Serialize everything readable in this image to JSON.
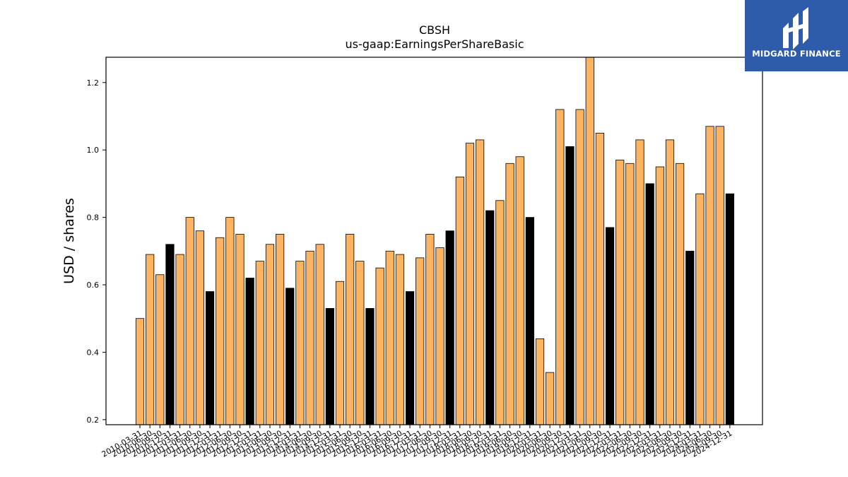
{
  "chart_data": {
    "type": "bar",
    "title": "CBSH",
    "subtitle": "us-gaap:EarningsPerShareBasic",
    "xlabel": "",
    "ylabel": "USD / shares",
    "ylim": [
      0.185,
      1.275
    ],
    "yticks": [
      0.2,
      0.4,
      0.6,
      0.8,
      1.0,
      1.2
    ],
    "grid": false,
    "colors": {
      "quarter": "#fdb462",
      "annual": "#000000",
      "edge": "#000000"
    },
    "bars": [
      {
        "x": "2010-03-31",
        "y": 0.5,
        "kind": "quarter"
      },
      {
        "x": "2010-06-30",
        "y": 0.69,
        "kind": "quarter"
      },
      {
        "x": "2010-09-30",
        "y": 0.63,
        "kind": "quarter"
      },
      {
        "x": "2010-12-31",
        "y": 0.72,
        "kind": "annual"
      },
      {
        "x": "2011-03-31",
        "y": 0.69,
        "kind": "quarter"
      },
      {
        "x": "2011-06-30",
        "y": 0.8,
        "kind": "quarter"
      },
      {
        "x": "2011-09-30",
        "y": 0.76,
        "kind": "quarter"
      },
      {
        "x": "2011-12-31",
        "y": 0.58,
        "kind": "annual"
      },
      {
        "x": "2012-03-31",
        "y": 0.74,
        "kind": "quarter"
      },
      {
        "x": "2012-06-30",
        "y": 0.8,
        "kind": "quarter"
      },
      {
        "x": "2012-09-30",
        "y": 0.75,
        "kind": "quarter"
      },
      {
        "x": "2012-12-31",
        "y": 0.62,
        "kind": "annual"
      },
      {
        "x": "2013-03-31",
        "y": 0.67,
        "kind": "quarter"
      },
      {
        "x": "2013-06-30",
        "y": 0.72,
        "kind": "quarter"
      },
      {
        "x": "2013-09-30",
        "y": 0.75,
        "kind": "quarter"
      },
      {
        "x": "2013-12-31",
        "y": 0.59,
        "kind": "annual"
      },
      {
        "x": "2014-03-31",
        "y": 0.67,
        "kind": "quarter"
      },
      {
        "x": "2014-06-30",
        "y": 0.7,
        "kind": "quarter"
      },
      {
        "x": "2014-09-30",
        "y": 0.72,
        "kind": "quarter"
      },
      {
        "x": "2014-12-31",
        "y": 0.53,
        "kind": "annual"
      },
      {
        "x": "2015-03-31",
        "y": 0.61,
        "kind": "quarter"
      },
      {
        "x": "2015-06-30",
        "y": 0.75,
        "kind": "quarter"
      },
      {
        "x": "2015-09-30",
        "y": 0.67,
        "kind": "quarter"
      },
      {
        "x": "2015-12-31",
        "y": 0.53,
        "kind": "annual"
      },
      {
        "x": "2016-03-31",
        "y": 0.65,
        "kind": "quarter"
      },
      {
        "x": "2016-06-30",
        "y": 0.7,
        "kind": "quarter"
      },
      {
        "x": "2016-09-30",
        "y": 0.69,
        "kind": "quarter"
      },
      {
        "x": "2016-12-31",
        "y": 0.58,
        "kind": "annual"
      },
      {
        "x": "2017-03-31",
        "y": 0.68,
        "kind": "quarter"
      },
      {
        "x": "2017-06-30",
        "y": 0.75,
        "kind": "quarter"
      },
      {
        "x": "2017-09-30",
        "y": 0.71,
        "kind": "quarter"
      },
      {
        "x": "2017-12-31",
        "y": 0.76,
        "kind": "annual"
      },
      {
        "x": "2018-03-31",
        "y": 0.92,
        "kind": "quarter"
      },
      {
        "x": "2018-06-30",
        "y": 1.02,
        "kind": "quarter"
      },
      {
        "x": "2018-09-30",
        "y": 1.03,
        "kind": "quarter"
      },
      {
        "x": "2018-12-31",
        "y": 0.82,
        "kind": "annual"
      },
      {
        "x": "2019-03-31",
        "y": 0.85,
        "kind": "quarter"
      },
      {
        "x": "2019-06-30",
        "y": 0.96,
        "kind": "quarter"
      },
      {
        "x": "2019-09-30",
        "y": 0.98,
        "kind": "quarter"
      },
      {
        "x": "2019-12-31",
        "y": 0.8,
        "kind": "annual"
      },
      {
        "x": "2020-03-31",
        "y": 0.44,
        "kind": "quarter"
      },
      {
        "x": "2020-06-30",
        "y": 0.34,
        "kind": "quarter"
      },
      {
        "x": "2020-09-30",
        "y": 1.12,
        "kind": "quarter"
      },
      {
        "x": "2020-12-31",
        "y": 1.01,
        "kind": "annual"
      },
      {
        "x": "2021-03-31",
        "y": 1.12,
        "kind": "quarter"
      },
      {
        "x": "2021-06-30",
        "y": 1.28,
        "kind": "quarter"
      },
      {
        "x": "2021-09-30",
        "y": 1.05,
        "kind": "quarter"
      },
      {
        "x": "2021-12-31",
        "y": 0.77,
        "kind": "annual"
      },
      {
        "x": "2022-03-31",
        "y": 0.97,
        "kind": "quarter"
      },
      {
        "x": "2022-06-30",
        "y": 0.96,
        "kind": "quarter"
      },
      {
        "x": "2022-09-30",
        "y": 1.03,
        "kind": "quarter"
      },
      {
        "x": "2022-12-31",
        "y": 0.9,
        "kind": "annual"
      },
      {
        "x": "2023-03-31",
        "y": 0.95,
        "kind": "quarter"
      },
      {
        "x": "2023-06-30",
        "y": 1.03,
        "kind": "quarter"
      },
      {
        "x": "2023-09-30",
        "y": 0.96,
        "kind": "quarter"
      },
      {
        "x": "2023-12-31",
        "y": 0.7,
        "kind": "annual"
      },
      {
        "x": "2024-03-31",
        "y": 0.87,
        "kind": "quarter"
      },
      {
        "x": "2024-06-30",
        "y": 1.07,
        "kind": "quarter"
      },
      {
        "x": "2024-09-30",
        "y": 1.07,
        "kind": "quarter"
      },
      {
        "x": "2024-12-31",
        "y": 0.87,
        "kind": "annual"
      }
    ]
  },
  "logo": {
    "text": "MIDGARD FINANCE",
    "bg": "#2e5cab"
  }
}
